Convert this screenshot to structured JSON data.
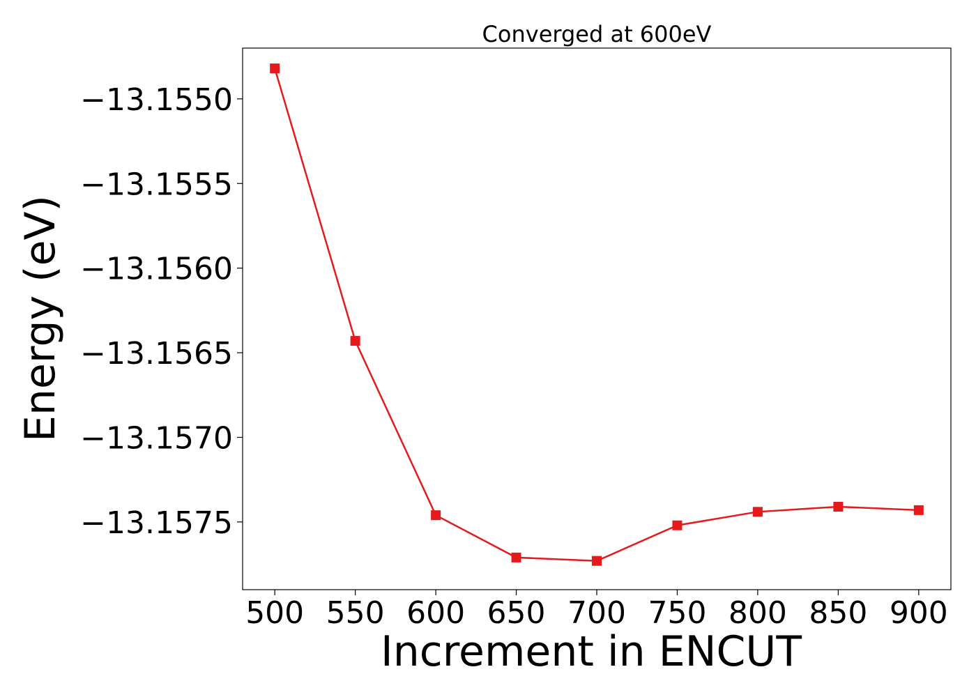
{
  "chart_data": {
    "type": "line",
    "title": "Converged at 600eV",
    "xlabel": "Increment in ENCUT",
    "ylabel": "Energy (eV)",
    "xlim": [
      480,
      920
    ],
    "ylim": [
      -13.1579,
      -13.1547
    ],
    "x_ticks": [
      500,
      550,
      600,
      650,
      700,
      750,
      800,
      850,
      900
    ],
    "x_tick_labels": [
      "500",
      "550",
      "600",
      "650",
      "700",
      "750",
      "800",
      "850",
      "900"
    ],
    "y_ticks": [
      -13.155,
      -13.1555,
      -13.156,
      -13.1565,
      -13.157,
      -13.1575
    ],
    "y_tick_labels": [
      "−13.1550",
      "−13.1555",
      "−13.1560",
      "−13.1565",
      "−13.1570",
      "−13.1575"
    ],
    "grid": false,
    "series": [
      {
        "color": "#e41a1c",
        "marker": "square",
        "x": [
          500,
          550,
          600,
          650,
          700,
          750,
          800,
          850,
          900
        ],
        "y": [
          -13.15482,
          -13.15643,
          -13.15746,
          -13.15771,
          -13.15773,
          -13.15752,
          -13.15744,
          -13.15741,
          -13.15743
        ]
      }
    ]
  }
}
